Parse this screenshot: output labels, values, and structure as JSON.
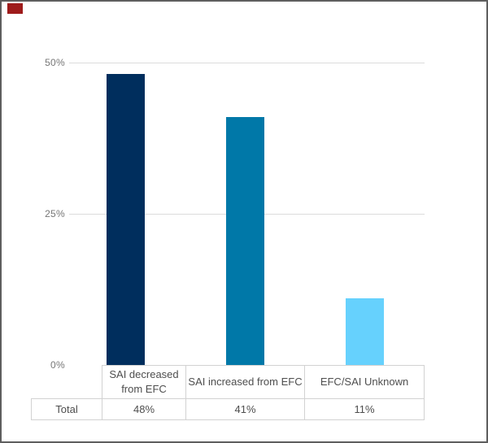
{
  "window": {
    "background": "#FFFFFF",
    "border_color": "#5E5E5E"
  },
  "marker": {
    "color": "#9E1B1B"
  },
  "chart_data": {
    "type": "bar",
    "title": "",
    "categories": [
      "SAI decreased from EFC",
      "SAI increased from EFC",
      "EFC/SAI Unknown"
    ],
    "values": [
      48,
      41,
      11
    ],
    "unit": "%",
    "colors": [
      "#002E5D",
      "#0078A8",
      "#66D1FD"
    ],
    "ylim": [
      0,
      50
    ],
    "y_ticks": [
      {
        "value": 0,
        "label": "0%"
      },
      {
        "value": 25,
        "label": "25%"
      },
      {
        "value": 50,
        "label": "50%"
      }
    ],
    "grid": true,
    "legend": "none"
  },
  "table": {
    "row_label": "Total",
    "values": [
      "48%",
      "41%",
      "11%"
    ]
  },
  "colors": {
    "gridline": "#DCDCDC",
    "table_border": "#D2D2D2",
    "text": "#4E4E4E",
    "axis_text": "#767676"
  }
}
